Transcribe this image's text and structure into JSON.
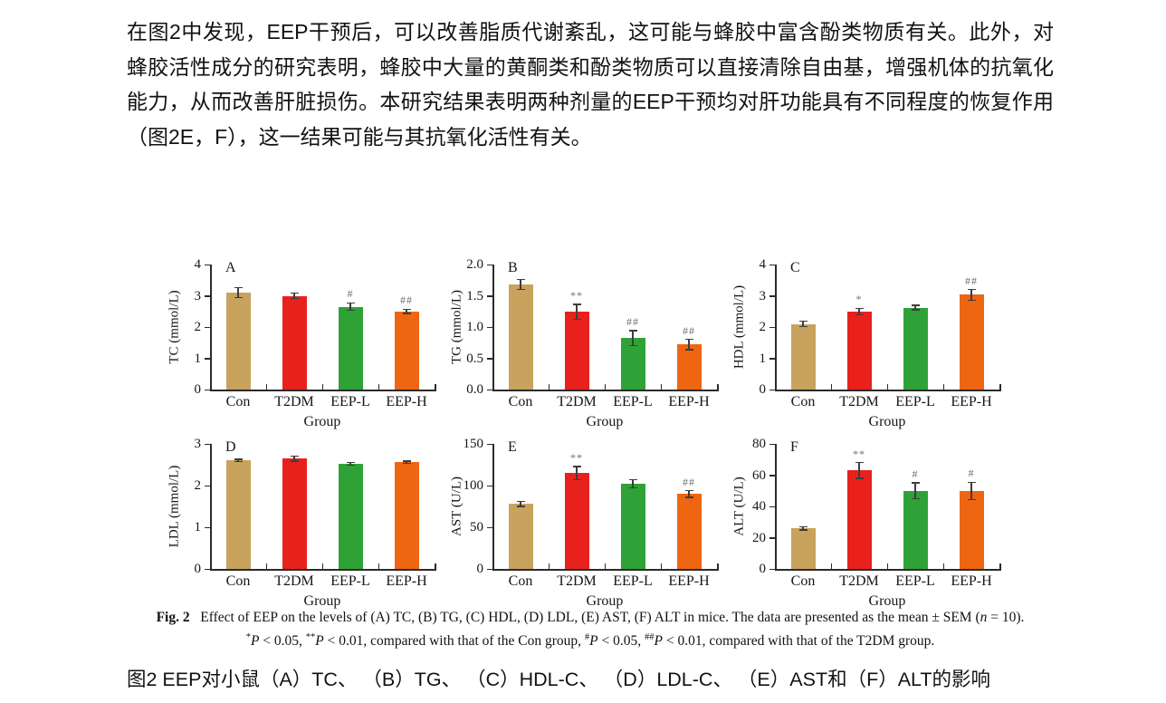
{
  "page": {
    "paragraph_top": "在图2中发现，EEP干预后，可以改善脂质代谢紊乱，这可能与蜂胶中富含酚类物质有关。此外，对蜂胶活性成分的研究表明，蜂胶中大量的黄酮类和酚类物质可以直接清除自由基，增强机体的抗氧化能力，从而改善肝脏损伤。本研究结果表明两种剂量的EEP干预均对肝功能具有不同程度的恢复作用（图2E，F），这一结果可能与其抗氧化活性有关。",
    "caption_cn": "图2  EEP对小鼠（A）TC、 （B）TG、 （C）HDL-C、 （D）LDL-C、 （E）AST和（F）ALT的影响"
  },
  "figure_caption": {
    "line1_segments": [
      {
        "t": "Fig. 2",
        "s": "b"
      },
      {
        "t": "   Effect of EEP on the levels of (A) TC, (B) TG, (C) HDL, (D) LDL, (E) AST, (F) ALT in mice. The data are presented as the mean ± SEM (",
        "s": ""
      },
      {
        "t": "n",
        "s": "i"
      },
      {
        "t": " = 10).",
        "s": ""
      }
    ],
    "line2_segments": [
      {
        "t": "*",
        "s": "sup"
      },
      {
        "t": "P",
        "s": "i"
      },
      {
        "t": " < 0.05, ",
        "s": ""
      },
      {
        "t": "**",
        "s": "sup"
      },
      {
        "t": "P",
        "s": "i"
      },
      {
        "t": " < 0.01, compared with that of the Con group, ",
        "s": ""
      },
      {
        "t": "#",
        "s": "sup"
      },
      {
        "t": "P",
        "s": "i"
      },
      {
        "t": " < 0.05, ",
        "s": ""
      },
      {
        "t": "##",
        "s": "sup"
      },
      {
        "t": "P",
        "s": "i"
      },
      {
        "t": " < 0.01, compared with that of the T2DM group.",
        "s": ""
      }
    ]
  },
  "colors": {
    "bars": [
      "#C8A35E",
      "#E8211C",
      "#2FA237",
      "#EE6512"
    ],
    "axis": "#2b2b2b",
    "error": "#3d3d3d",
    "annotation": "#6e6e6e"
  },
  "chart_data": [
    {
      "type": "bar",
      "panel": "A",
      "ylabel": "TC (mmol/L)",
      "xlabel": "Group",
      "categories": [
        "Con",
        "T2DM",
        "EEP-L",
        "EEP-H"
      ],
      "values": [
        3.1,
        3.0,
        2.65,
        2.5
      ],
      "errors": [
        0.16,
        0.08,
        0.12,
        0.07
      ],
      "annotations": [
        "",
        "",
        "#",
        "##"
      ],
      "ylim": [
        0,
        4
      ],
      "yticks": [
        "0",
        "1",
        "2",
        "3",
        "4"
      ],
      "grid": false,
      "legend": "none"
    },
    {
      "type": "bar",
      "panel": "B",
      "ylabel": "TG (mmol/L)",
      "xlabel": "Group",
      "categories": [
        "Con",
        "T2DM",
        "EEP-L",
        "EEP-H"
      ],
      "values": [
        1.68,
        1.24,
        0.82,
        0.72
      ],
      "errors": [
        0.08,
        0.12,
        0.12,
        0.08
      ],
      "annotations": [
        "",
        "**",
        "##",
        "##"
      ],
      "ylim": [
        0,
        2
      ],
      "yticks": [
        "0.0",
        "0.5",
        "1.0",
        "1.5",
        "2.0"
      ],
      "grid": false,
      "legend": "none"
    },
    {
      "type": "bar",
      "panel": "C",
      "ylabel": "HDL (mmol/L)",
      "xlabel": "Group",
      "categories": [
        "Con",
        "T2DM",
        "EEP-L",
        "EEP-H"
      ],
      "values": [
        2.1,
        2.5,
        2.62,
        3.03
      ],
      "errors": [
        0.08,
        0.1,
        0.07,
        0.17
      ],
      "annotations": [
        "",
        "*",
        "",
        "##"
      ],
      "ylim": [
        0,
        4
      ],
      "yticks": [
        "0",
        "1",
        "2",
        "3",
        "4"
      ],
      "grid": false,
      "legend": "none"
    },
    {
      "type": "bar",
      "panel": "D",
      "ylabel": "LDL (mmol/L)",
      "xlabel": "Group",
      "categories": [
        "Con",
        "T2DM",
        "EEP-L",
        "EEP-H"
      ],
      "values": [
        2.6,
        2.65,
        2.52,
        2.56
      ],
      "errors": [
        0.03,
        0.06,
        0.03,
        0.03
      ],
      "annotations": [
        "",
        "",
        "",
        ""
      ],
      "ylim": [
        0,
        3
      ],
      "yticks": [
        "0",
        "1",
        "2",
        "3"
      ],
      "grid": false,
      "legend": "none"
    },
    {
      "type": "bar",
      "panel": "E",
      "ylabel": "AST (U/L)",
      "xlabel": "Group",
      "categories": [
        "Con",
        "T2DM",
        "EEP-L",
        "EEP-H"
      ],
      "values": [
        78,
        115,
        102,
        90
      ],
      "errors": [
        3,
        8,
        5,
        4
      ],
      "annotations": [
        "",
        "**",
        "",
        "##"
      ],
      "ylim": [
        0,
        150
      ],
      "yticks": [
        "0",
        "50",
        "100",
        "150"
      ],
      "grid": false,
      "legend": "none"
    },
    {
      "type": "bar",
      "panel": "F",
      "ylabel": "ALT (U/L)",
      "xlabel": "Group",
      "categories": [
        "Con",
        "T2DM",
        "EEP-L",
        "EEP-H"
      ],
      "values": [
        26,
        63,
        50,
        50
      ],
      "errors": [
        1,
        5,
        5,
        5.5
      ],
      "annotations": [
        "",
        "**",
        "#",
        "#"
      ],
      "ylim": [
        0,
        80
      ],
      "yticks": [
        "0",
        "20",
        "40",
        "60",
        "80"
      ],
      "grid": false,
      "legend": "none"
    }
  ]
}
